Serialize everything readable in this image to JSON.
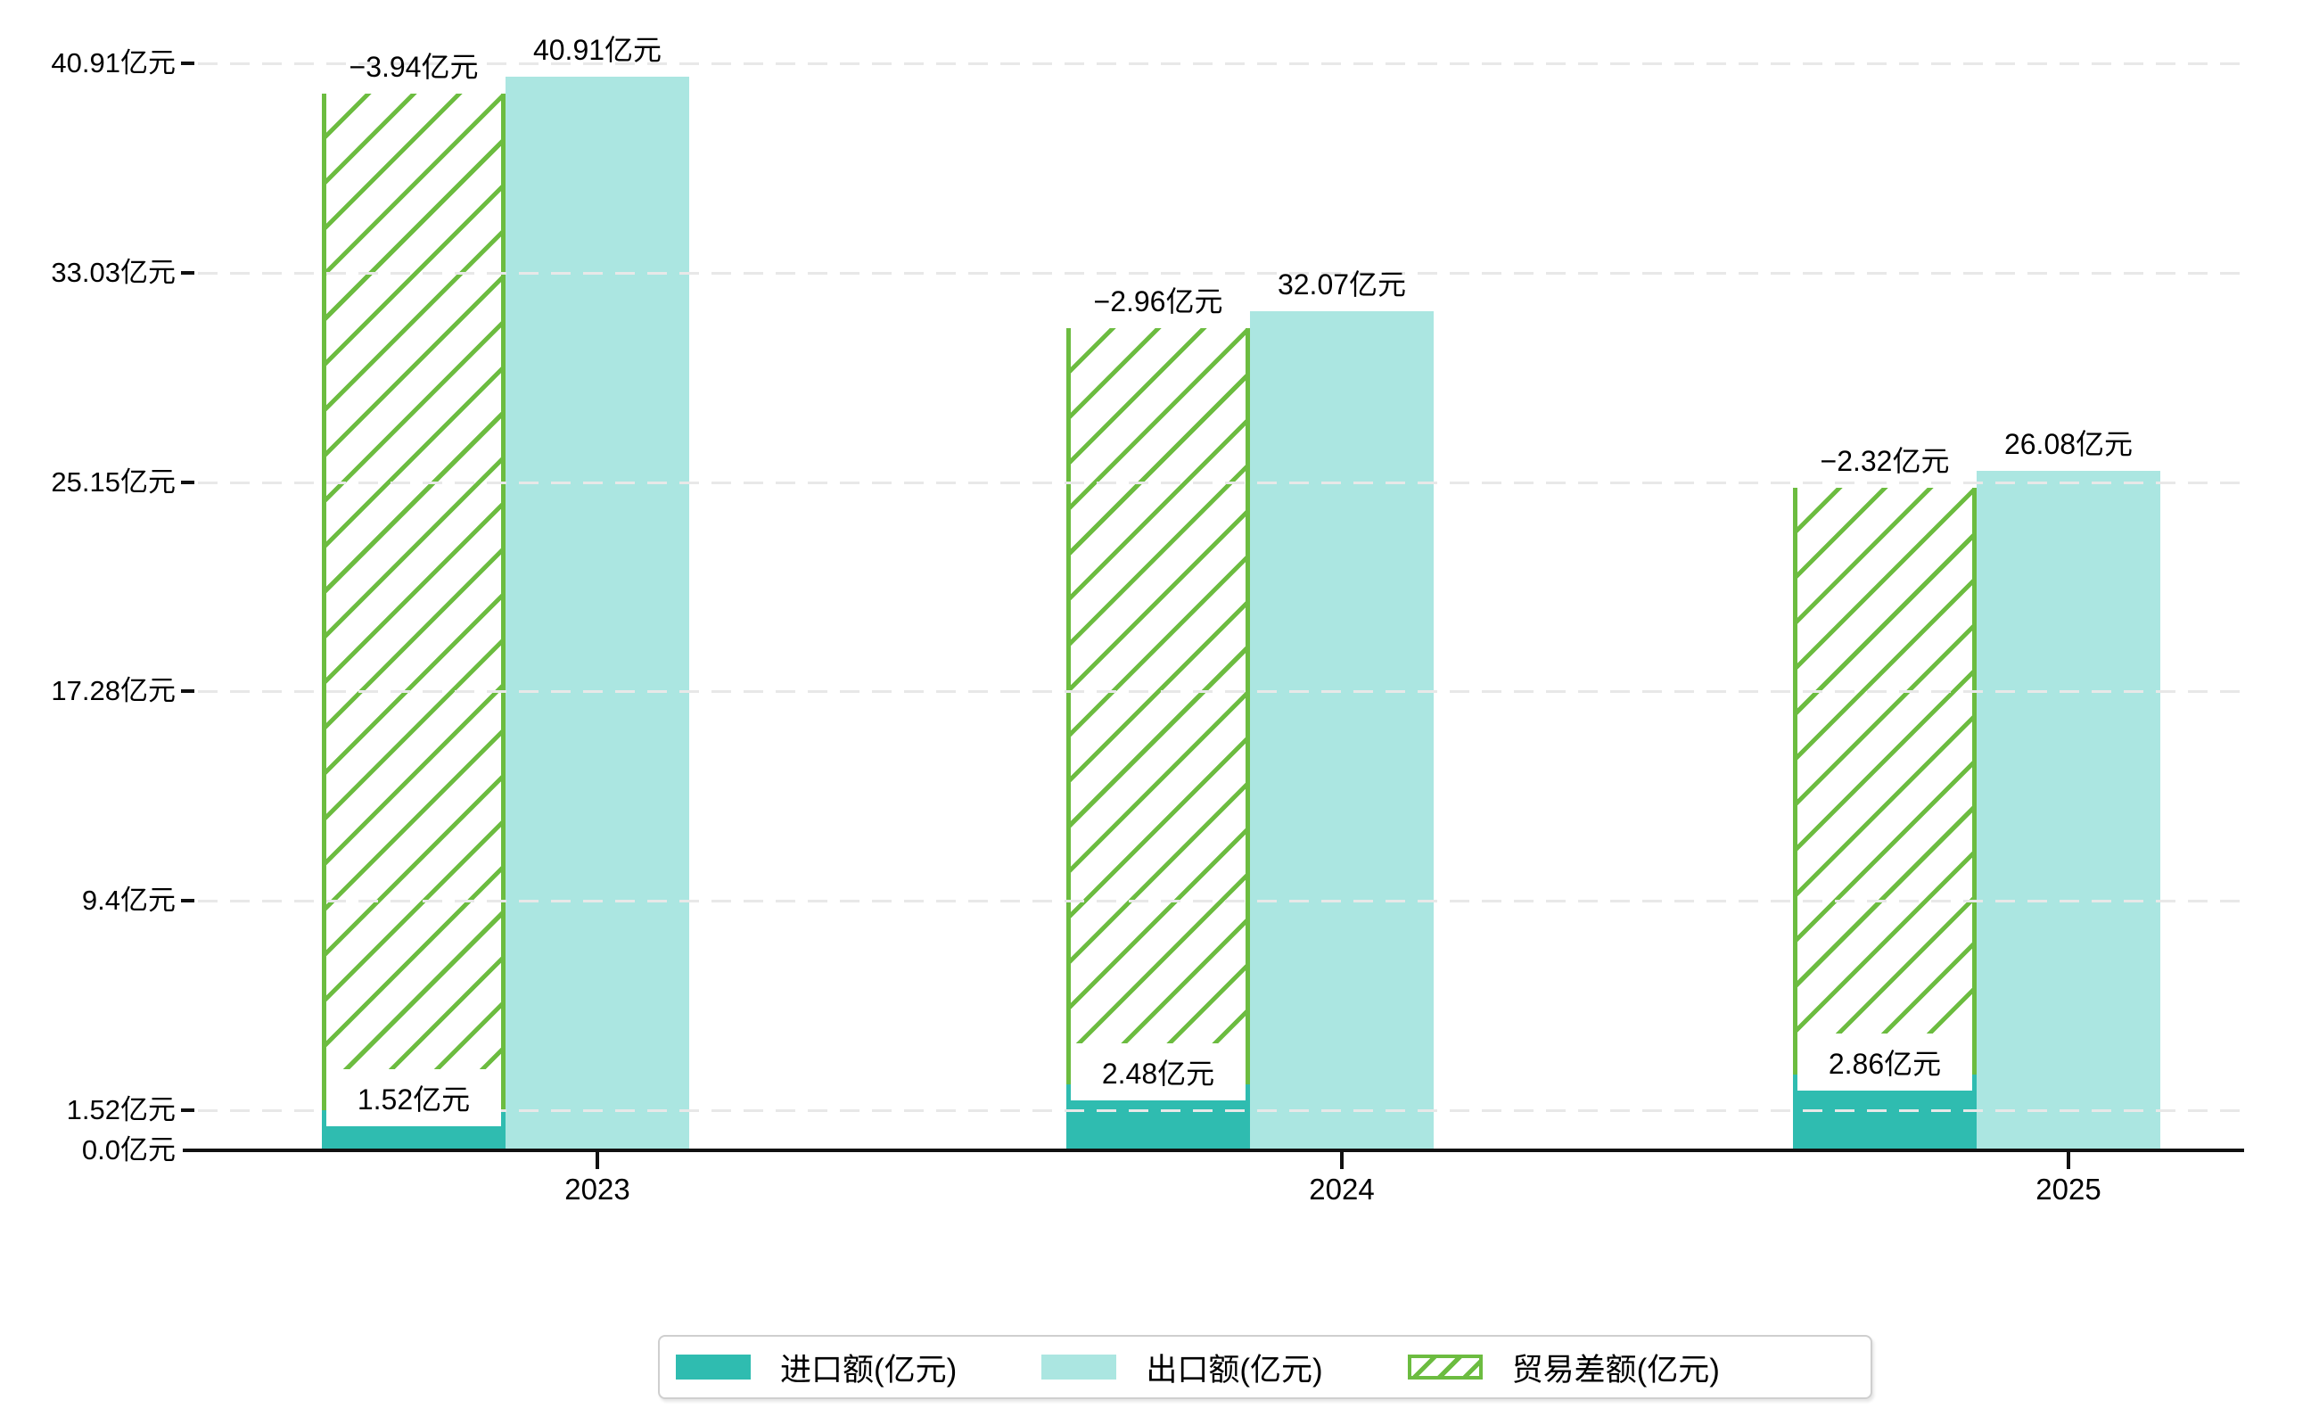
{
  "chart_data": {
    "type": "bar",
    "title": "",
    "categories": [
      "2023",
      "2024",
      "2025"
    ],
    "series": [
      {
        "name": "进口额(亿元)",
        "role": "import",
        "style": "solid",
        "color": "#2fbcb0",
        "values": [
          1.52,
          2.48,
          2.86
        ],
        "data_labels": [
          "1.52亿元",
          "2.48亿元",
          "2.86亿元"
        ]
      },
      {
        "name": "出口额(亿元)",
        "role": "export",
        "style": "solid",
        "color": "#abe6e1",
        "values": [
          40.91,
          32.07,
          26.08
        ],
        "data_labels": [
          "40.91亿元",
          "32.07亿元",
          "26.08亿元"
        ]
      },
      {
        "name": "贸易差额(亿元)",
        "role": "trade-balance",
        "style": "hatched",
        "color": "#6cbc40",
        "values": [
          -3.94,
          -2.96,
          -2.32
        ],
        "data_labels": [
          "−3.94亿元",
          "−2.96亿元",
          "−2.32亿元"
        ]
      }
    ],
    "y_axis": {
      "unit": "亿元",
      "ticks": [
        {
          "value": 0.0,
          "label": "0.0亿元"
        },
        {
          "value": 1.52,
          "label": "1.52亿元"
        },
        {
          "value": 9.4,
          "label": "9.4亿元"
        },
        {
          "value": 17.28,
          "label": "17.28亿元"
        },
        {
          "value": 25.15,
          "label": "25.15亿元"
        },
        {
          "value": 33.03,
          "label": "33.03亿元"
        },
        {
          "value": 40.91,
          "label": "40.91亿元"
        }
      ]
    },
    "ylim": [
      0,
      43.3
    ],
    "grid": "horizontal-dashed",
    "legend_position": "bottom"
  },
  "legend": {
    "items": [
      {
        "label": "进口额(亿元)",
        "swatch": "solid-teal"
      },
      {
        "label": "出口额(亿元)",
        "swatch": "solid-light-teal"
      },
      {
        "label": "贸易差额(亿元)",
        "swatch": "green-hatched"
      }
    ]
  },
  "colors": {
    "import": "#2fbcb0",
    "export": "#abe6e1",
    "balance_green": "#6cbc40",
    "axis": "#111111",
    "gridline": "#e8e8e8",
    "background": "#ffffff"
  }
}
